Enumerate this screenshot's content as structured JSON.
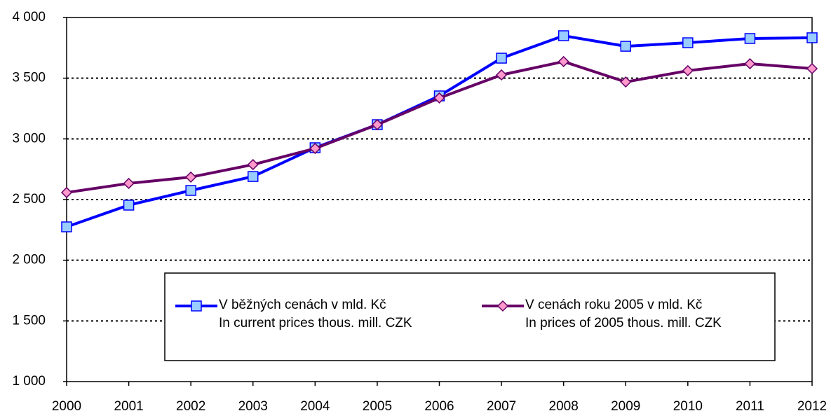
{
  "chart_data": {
    "type": "line",
    "x": [
      2000,
      2001,
      2002,
      2003,
      2004,
      2005,
      2006,
      2007,
      2008,
      2009,
      2010,
      2011,
      2012
    ],
    "xlim": [
      2000,
      2012
    ],
    "xticks": [
      2000,
      2001,
      2002,
      2003,
      2004,
      2005,
      2006,
      2007,
      2008,
      2009,
      2010,
      2011,
      2012
    ],
    "ylim": [
      1000,
      4000
    ],
    "yticks": [
      {
        "value": 1000,
        "label": "1 000"
      },
      {
        "value": 1500,
        "label": "1 500"
      },
      {
        "value": 2000,
        "label": "2 000"
      },
      {
        "value": 2500,
        "label": "2 500"
      },
      {
        "value": 3000,
        "label": "3 000"
      },
      {
        "value": 3500,
        "label": "3 500"
      },
      {
        "value": 4000,
        "label": "4 000"
      }
    ],
    "grid": true,
    "legend": "bottom",
    "series": [
      {
        "name": "V běžných cenách v mld. Kč\nIn current prices thous. mill. CZK",
        "color": "#0000ff",
        "marker": "square",
        "marker_color": "#99ccff",
        "values": [
          2275,
          2454,
          2575,
          2690,
          2927,
          3117,
          3354,
          3665,
          3850,
          3763,
          3792,
          3827,
          3833
        ]
      },
      {
        "name": "V cenách roku 2005 v mld. Kč\nIn prices of 2005 thous. mill. CZK",
        "color": "#660066",
        "marker": "diamond",
        "marker_color": "#ff99cc",
        "values": [
          2558,
          2633,
          2685,
          2788,
          2921,
          3117,
          3337,
          3527,
          3637,
          3469,
          3562,
          3619,
          3579
        ]
      }
    ]
  }
}
